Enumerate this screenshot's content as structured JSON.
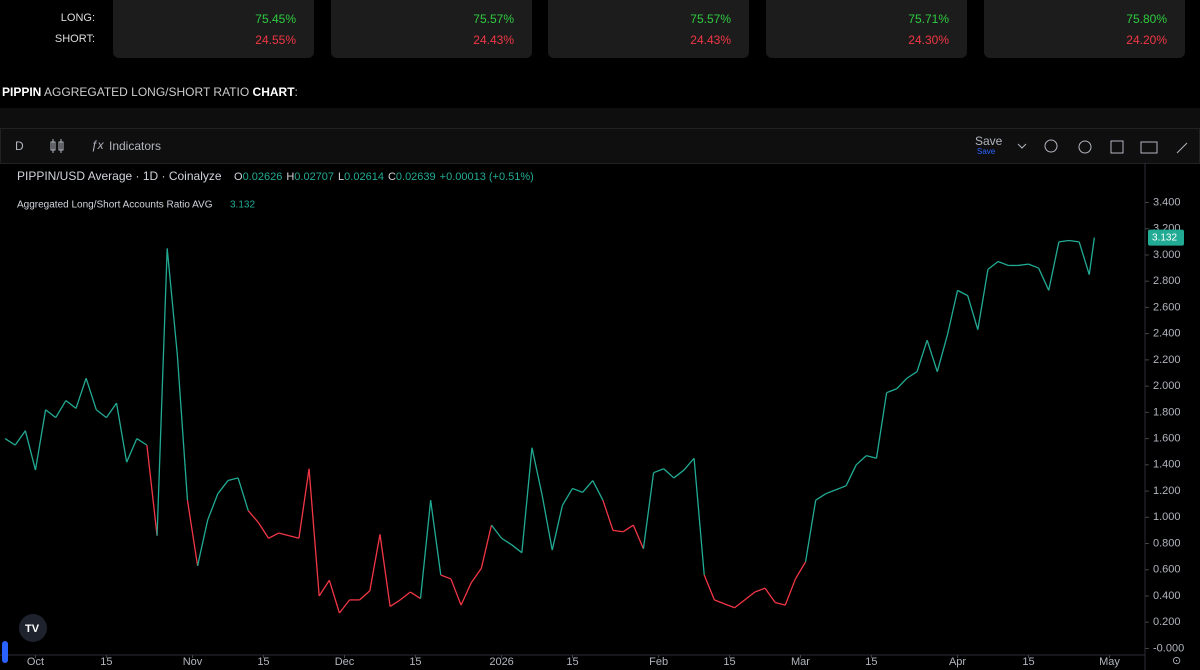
{
  "stats": {
    "row_labels": [
      "LONG:",
      "SHORT:"
    ],
    "cards": [
      {
        "long": "75.45%",
        "short": "24.55%"
      },
      {
        "long": "75.57%",
        "short": "24.43%"
      },
      {
        "long": "75.57%",
        "short": "24.43%"
      },
      {
        "long": "75.71%",
        "short": "24.30%"
      },
      {
        "long": "75.80%",
        "short": "24.20%"
      }
    ]
  },
  "header": {
    "symbol": "PIPPIN",
    "middle": "AGGREGATED LONG/SHORT RATIO",
    "end": "CHART",
    "colon": ":"
  },
  "toolbar": {
    "interval": "D",
    "indicators": "Indicators",
    "save": "Save",
    "save_sub": "Save"
  },
  "legend": {
    "title": "PIPPIN/USD Average · 1D · Coinalyze",
    "o_label": "O",
    "o": "0.02626",
    "h_label": "H",
    "h": "0.02707",
    "l_label": "L",
    "l": "0.02614",
    "c_label": "C",
    "c": "0.02639",
    "change": "+0.00013 (+0.51%)"
  },
  "chart_data": {
    "type": "line",
    "grid": false,
    "xlim": [
      "2025-09-24",
      "2026-05-08"
    ],
    "ylim": [
      -0.05,
      3.48
    ],
    "yticks": [
      {
        "value": 0,
        "label": "-0.000"
      },
      {
        "value": 0.2,
        "label": "0.200"
      },
      {
        "value": 0.4,
        "label": "0.400"
      },
      {
        "value": 0.6,
        "label": "0.600"
      },
      {
        "value": 0.8,
        "label": "0.800"
      },
      {
        "value": 1,
        "label": "1.000"
      },
      {
        "value": 1.2,
        "label": "1.200"
      },
      {
        "value": 1.4,
        "label": "1.400"
      },
      {
        "value": 1.6,
        "label": "1.600"
      },
      {
        "value": 1.8,
        "label": "1.800"
      },
      {
        "value": 2,
        "label": "2.000"
      },
      {
        "value": 2.2,
        "label": "2.200"
      },
      {
        "value": 2.4,
        "label": "2.400"
      },
      {
        "value": 2.6,
        "label": "2.600"
      },
      {
        "value": 2.8,
        "label": "2.800"
      },
      {
        "value": 3,
        "label": "3.000"
      },
      {
        "value": 3.2,
        "label": "3.200"
      },
      {
        "value": 3.4,
        "label": "3.400"
      }
    ],
    "xticks": [
      {
        "value": "2025-10-01",
        "label": "Oct"
      },
      {
        "value": "2025-10-15",
        "label": "15"
      },
      {
        "value": "2025-11-01",
        "label": "Nov"
      },
      {
        "value": "2025-11-15",
        "label": "15"
      },
      {
        "value": "2025-12-01",
        "label": "Dec"
      },
      {
        "value": "2025-12-15",
        "label": "15"
      },
      {
        "value": "2026-01-01",
        "label": "2026"
      },
      {
        "value": "2026-01-15",
        "label": "15"
      },
      {
        "value": "2026-02-01",
        "label": "Feb"
      },
      {
        "value": "2026-02-15",
        "label": "15"
      },
      {
        "value": "2026-03-01",
        "label": "Mar"
      },
      {
        "value": "2026-03-15",
        "label": "15"
      },
      {
        "value": "2026-04-01",
        "label": "Apr"
      },
      {
        "value": "2026-04-15",
        "label": "15"
      },
      {
        "value": "2026-05-01",
        "label": "May"
      }
    ],
    "x": [
      "2025-09-25",
      "2025-09-27",
      "2025-09-29",
      "2025-10-01",
      "2025-10-03",
      "2025-10-05",
      "2025-10-07",
      "2025-10-09",
      "2025-10-11",
      "2025-10-13",
      "2025-10-15",
      "2025-10-17",
      "2025-10-19",
      "2025-10-21",
      "2025-10-23",
      "2025-10-25",
      "2025-10-27",
      "2025-10-29",
      "2025-10-31",
      "2025-11-02",
      "2025-11-04",
      "2025-11-06",
      "2025-11-08",
      "2025-11-10",
      "2025-11-12",
      "2025-11-14",
      "2025-11-16",
      "2025-11-18",
      "2025-11-20",
      "2025-11-22",
      "2025-11-24",
      "2025-11-26",
      "2025-11-28",
      "2025-11-30",
      "2025-12-02",
      "2025-12-04",
      "2025-12-06",
      "2025-12-08",
      "2025-12-10",
      "2025-12-12",
      "2025-12-14",
      "2025-12-16",
      "2025-12-18",
      "2025-12-20",
      "2025-12-22",
      "2025-12-24",
      "2025-12-26",
      "2025-12-28",
      "2025-12-30",
      "2026-01-01",
      "2026-01-03",
      "2026-01-05",
      "2026-01-07",
      "2026-01-09",
      "2026-01-11",
      "2026-01-13",
      "2026-01-15",
      "2026-01-17",
      "2026-01-19",
      "2026-01-21",
      "2026-01-23",
      "2026-01-25",
      "2026-01-27",
      "2026-01-29",
      "2026-01-31",
      "2026-02-02",
      "2026-02-04",
      "2026-02-06",
      "2026-02-08",
      "2026-02-10",
      "2026-02-12",
      "2026-02-14",
      "2026-02-16",
      "2026-02-18",
      "2026-02-20",
      "2026-02-22",
      "2026-02-24",
      "2026-02-26",
      "2026-02-28",
      "2026-03-02",
      "2026-03-04",
      "2026-03-06",
      "2026-03-08",
      "2026-03-10",
      "2026-03-12",
      "2026-03-14",
      "2026-03-16",
      "2026-03-18",
      "2026-03-20",
      "2026-03-22",
      "2026-03-24",
      "2026-03-26",
      "2026-03-28",
      "2026-03-30",
      "2026-04-01",
      "2026-04-03",
      "2026-04-05",
      "2026-04-07",
      "2026-04-09",
      "2026-04-11",
      "2026-04-13",
      "2026-04-15",
      "2026-04-17",
      "2026-04-19",
      "2026-04-21",
      "2026-04-23",
      "2026-04-25",
      "2026-04-27",
      "2026-04-28"
    ],
    "series": [
      {
        "name": "Aggregated Long/Short Accounts Ratio AVG",
        "values": [
          1.6,
          1.55,
          1.66,
          1.36,
          1.82,
          1.76,
          1.89,
          1.83,
          2.06,
          1.82,
          1.76,
          1.87,
          1.42,
          1.6,
          1.55,
          0.86,
          3.05,
          2.24,
          1.13,
          0.63,
          0.98,
          1.18,
          1.28,
          1.3,
          1.05,
          0.96,
          0.84,
          0.88,
          0.86,
          0.84,
          1.37,
          0.4,
          0.52,
          0.27,
          0.37,
          0.37,
          0.44,
          0.87,
          0.32,
          0.37,
          0.43,
          0.38,
          1.13,
          0.56,
          0.53,
          0.33,
          0.5,
          0.61,
          0.94,
          0.84,
          0.79,
          0.73,
          1.53,
          1.17,
          0.75,
          1.09,
          1.22,
          1.19,
          1.28,
          1.13,
          0.9,
          0.89,
          0.94,
          0.76,
          1.34,
          1.37,
          1.3,
          1.36,
          1.45,
          0.56,
          0.37,
          0.34,
          0.31,
          0.37,
          0.43,
          0.46,
          0.35,
          0.33,
          0.53,
          0.66,
          1.13,
          1.18,
          1.21,
          1.24,
          1.4,
          1.47,
          1.45,
          1.95,
          1.98,
          2.06,
          2.11,
          2.35,
          2.11,
          2.39,
          2.73,
          2.69,
          2.43,
          2.89,
          2.95,
          2.92,
          2.92,
          2.93,
          2.9,
          2.73,
          3.1,
          3.11,
          3.1,
          2.85,
          3.132
        ],
        "colors": [
          "#22ab94",
          "#22ab94",
          "#22ab94",
          "#22ab94",
          "#22ab94",
          "#22ab94",
          "#22ab94",
          "#22ab94",
          "#22ab94",
          "#22ab94",
          "#22ab94",
          "#22ab94",
          "#22ab94",
          "#22ab94",
          "#22ab94",
          "#f23645",
          "#22ab94",
          "#22ab94",
          "#22ab94",
          "#f23645",
          "#22ab94",
          "#22ab94",
          "#22ab94",
          "#22ab94",
          "#22ab94",
          "#f23645",
          "#f23645",
          "#f23645",
          "#f23645",
          "#f23645",
          "#f23645",
          "#f23645",
          "#f23645",
          "#f23645",
          "#f23645",
          "#f23645",
          "#f23645",
          "#f23645",
          "#f23645",
          "#f23645",
          "#f23645",
          "#f23645",
          "#22ab94",
          "#22ab94",
          "#f23645",
          "#f23645",
          "#f23645",
          "#f23645",
          "#f23645",
          "#22ab94",
          "#22ab94",
          "#22ab94",
          "#22ab94",
          "#22ab94",
          "#22ab94",
          "#22ab94",
          "#22ab94",
          "#22ab94",
          "#22ab94",
          "#22ab94",
          "#f23645",
          "#f23645",
          "#f23645",
          "#f23645",
          "#22ab94",
          "#22ab94",
          "#22ab94",
          "#22ab94",
          "#22ab94",
          "#22ab94",
          "#f23645",
          "#f23645",
          "#f23645",
          "#f23645",
          "#f23645",
          "#f23645",
          "#f23645",
          "#f23645",
          "#f23645",
          "#f23645",
          "#22ab94",
          "#22ab94",
          "#22ab94",
          "#22ab94",
          "#22ab94",
          "#22ab94",
          "#22ab94",
          "#22ab94",
          "#22ab94",
          "#22ab94",
          "#22ab94",
          "#22ab94",
          "#22ab94",
          "#22ab94",
          "#22ab94",
          "#22ab94",
          "#22ab94",
          "#22ab94",
          "#22ab94",
          "#22ab94",
          "#22ab94",
          "#22ab94",
          "#22ab94",
          "#22ab94",
          "#22ab94",
          "#22ab94",
          "#22ab94",
          "#22ab94",
          "#22ab94"
        ]
      }
    ]
  }
}
